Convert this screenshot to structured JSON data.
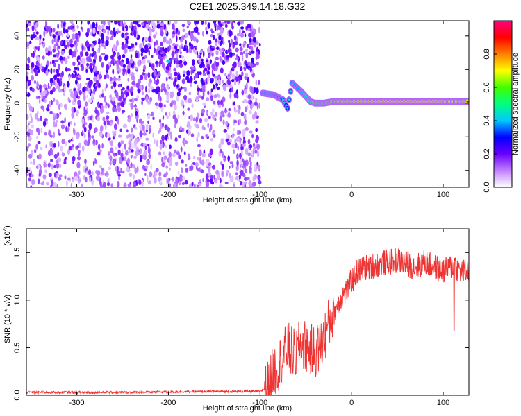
{
  "title": "C2E1.2025.349.14.18.G32",
  "chart_data": [
    {
      "type": "heatmap",
      "title": "C2E1.2025.349.14.18.G32",
      "xlabel": "Height of straight line (km)",
      "ylabel": "Frequency (Hz)",
      "xlim": [
        -355,
        128
      ],
      "ylim": [
        -50,
        49
      ],
      "xticks": [
        -300,
        -200,
        -100,
        0,
        100
      ],
      "xtick_labels": [
        "-300",
        "-200",
        "-100",
        "0",
        "100"
      ],
      "yticks": [
        -40,
        -20,
        0,
        20,
        40
      ],
      "ytick_labels": [
        "-40",
        "-20",
        "0",
        "20",
        "40"
      ],
      "colorbar": {
        "label": "Normalized spectral amplitude",
        "range": [
          0,
          1
        ],
        "ticks": [
          0.0,
          0.2,
          0.4,
          0.6,
          0.8
        ],
        "tick_labels": [
          "0.0",
          "0.2",
          "0.4",
          "0.6",
          "0.8"
        ],
        "colors": [
          "#ffffff",
          "#c080ff",
          "#6a00ff",
          "#0000ff",
          "#00c8ff",
          "#00ff80",
          "#40ff00",
          "#ffff00",
          "#ff8000",
          "#ff0000",
          "#ff0080"
        ]
      },
      "features": [
        {
          "name": "noise band",
          "x_range": [
            -355,
            -100
          ],
          "freq_range": [
            -50,
            49
          ],
          "amplitude_range": [
            0.05,
            0.25
          ],
          "denser_above_freq": 5
        },
        {
          "name": "hotspot",
          "x": -200,
          "freq": 25,
          "amplitude": 0.4
        },
        {
          "name": "signal track",
          "points": [
            [
              -97,
              6,
              0.5
            ],
            [
              -85,
              5,
              0.5
            ],
            [
              -75,
              2,
              0.45
            ],
            [
              -70,
              -3,
              0.4
            ],
            [
              -65,
              12,
              0.5
            ],
            [
              -57,
              8,
              0.5
            ],
            [
              -50,
              4,
              0.55
            ],
            [
              -45,
              1,
              0.6
            ],
            [
              -40,
              0,
              0.75
            ],
            [
              -30,
              0,
              0.7
            ],
            [
              -20,
              1,
              0.85
            ],
            [
              0,
              1,
              0.9
            ],
            [
              50,
              1,
              0.95
            ],
            [
              100,
              1,
              0.92
            ],
            [
              128,
              1,
              0.9
            ]
          ]
        }
      ]
    },
    {
      "type": "line",
      "xlabel": "Height of straight line (km)",
      "ylabel": "SNR (10 * v/v)",
      "y_multiplier_label": "(x10",
      "y_multiplier_exponent": "4",
      "y_multiplier_close": ")",
      "xlim": [
        -355,
        128
      ],
      "ylim": [
        0,
        1.75
      ],
      "xticks": [
        -300,
        -200,
        -100,
        0,
        100
      ],
      "xtick_labels": [
        "-300",
        "-200",
        "-100",
        "0",
        "100"
      ],
      "yticks": [
        0,
        0.5,
        1.0,
        1.5
      ],
      "ytick_labels": [
        "0.0",
        "0.5",
        "1.0",
        "1.5"
      ],
      "color": "#ee3333",
      "series": [
        {
          "name": "SNR",
          "x": [
            -355,
            -300,
            -250,
            -200,
            -150,
            -100,
            -92,
            -85,
            -78,
            -70,
            -62,
            -55,
            -48,
            -40,
            -32,
            -25,
            -18,
            -10,
            -5,
            0,
            5,
            10,
            20,
            30,
            40,
            50,
            60,
            70,
            80,
            90,
            100,
            108,
            112,
            116,
            120,
            128
          ],
          "y": [
            0.03,
            0.03,
            0.03,
            0.035,
            0.04,
            0.04,
            0.08,
            0.25,
            0.35,
            0.5,
            0.42,
            0.55,
            0.5,
            0.45,
            0.55,
            0.75,
            0.9,
            1.05,
            1.1,
            1.2,
            1.28,
            1.33,
            1.35,
            1.38,
            1.4,
            1.42,
            1.38,
            1.35,
            1.4,
            1.35,
            1.3,
            1.35,
            1.38,
            1.32,
            1.3,
            1.3
          ]
        }
      ]
    }
  ]
}
